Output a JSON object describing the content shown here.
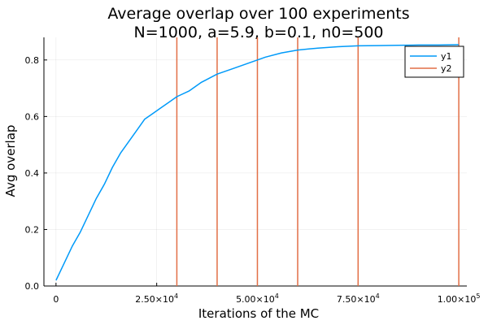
{
  "chart_data": {
    "type": "line",
    "title": "Average overlap over 100 experiments",
    "subtitle": "N=1000, a=5.9, b=0.1, n0=500",
    "xlabel": "Iterations of the MC",
    "ylabel": "Avg overlap",
    "xlim": [
      -3000,
      102000
    ],
    "ylim": [
      0,
      0.88
    ],
    "grid": true,
    "legend_position": "top-right",
    "x_ticks": [
      {
        "value": 0,
        "mantissa": "0",
        "exponent": ""
      },
      {
        "value": 25000,
        "mantissa": "2.50×10",
        "exponent": "4"
      },
      {
        "value": 50000,
        "mantissa": "5.00×10",
        "exponent": "4"
      },
      {
        "value": 75000,
        "mantissa": "7.50×10",
        "exponent": "4"
      },
      {
        "value": 100000,
        "mantissa": "1.00×10",
        "exponent": "5"
      }
    ],
    "y_ticks": [
      {
        "value": 0,
        "label": "0.0"
      },
      {
        "value": 0.2,
        "label": "0.2"
      },
      {
        "value": 0.4,
        "label": "0.4"
      },
      {
        "value": 0.6,
        "label": "0.6"
      },
      {
        "value": 0.8,
        "label": "0.8"
      }
    ],
    "series": [
      {
        "name": "y1",
        "kind": "line",
        "color": "#009af9",
        "x": [
          0,
          2000,
          4000,
          6000,
          8000,
          10000,
          12000,
          14000,
          16000,
          18000,
          20000,
          22000,
          24000,
          26000,
          28000,
          30000,
          33000,
          36000,
          40000,
          44000,
          48000,
          52000,
          56000,
          60000,
          65000,
          70000,
          75000,
          80000,
          85000,
          90000,
          95000,
          100000
        ],
        "y": [
          0.02,
          0.08,
          0.14,
          0.19,
          0.25,
          0.31,
          0.36,
          0.42,
          0.47,
          0.51,
          0.55,
          0.59,
          0.61,
          0.63,
          0.65,
          0.67,
          0.69,
          0.72,
          0.75,
          0.77,
          0.79,
          0.81,
          0.825,
          0.835,
          0.842,
          0.847,
          0.85,
          0.851,
          0.852,
          0.853,
          0.853,
          0.854
        ]
      },
      {
        "name": "y2",
        "kind": "vlines",
        "color": "#e26f46",
        "x": [
          30000,
          40000,
          50000,
          60000,
          75000,
          100000
        ]
      }
    ]
  }
}
